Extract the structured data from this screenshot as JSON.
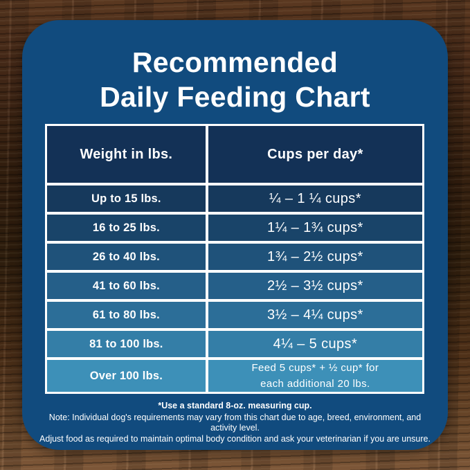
{
  "title": {
    "line1": "Recommended",
    "line2": "Daily Feeding Chart"
  },
  "table": {
    "header_weight": "Weight in lbs.",
    "header_cups": "Cups per day*",
    "rows": [
      {
        "weight": "Up to 15 lbs.",
        "cups": "¼ – 1 ¼ cups*"
      },
      {
        "weight": "16 to 25 lbs.",
        "cups": "1¼ – 1¾ cups*"
      },
      {
        "weight": "26 to 40 lbs.",
        "cups": "1¾ – 2½ cups*"
      },
      {
        "weight": "41 to 60 lbs.",
        "cups": "2½ – 3½ cups*"
      },
      {
        "weight": "61 to 80 lbs.",
        "cups": "3½ – 4¼ cups*"
      },
      {
        "weight": "81 to 100 lbs.",
        "cups": "4¼ – 5 cups*"
      },
      {
        "weight": "Over 100 lbs.",
        "cups_line1": "Feed 5 cups* + ½ cup* for",
        "cups_line2": "each additional 20 lbs."
      }
    ]
  },
  "footnotes": {
    "measuring_cup": "*Use a standard 8-oz. measuring cup.",
    "note_line1": "Note: Individual dog's requirements may vary from this chart due to age, breed, environment, and activity level.",
    "note_line2": "Adjust food as required to maintain optimal body condition and ask your veterinarian if you are unsure."
  },
  "colors": {
    "card_bg": "#114B7E",
    "header_cell_bg": "#133156",
    "table_border": "#FFFFFF",
    "text": "#FFFFFF",
    "row_gradient": [
      "#16395C",
      "#194469",
      "#1F527A",
      "#255F89",
      "#2C6E98",
      "#347EA7",
      "#3D90B8"
    ],
    "wood_dark": "#32200E",
    "wood_light": "#7D5738"
  },
  "chart_data": {
    "type": "table",
    "title": "Recommended Daily Feeding Chart",
    "columns": [
      "Weight in lbs.",
      "Cups per day*"
    ],
    "rows": [
      [
        "Up to 15 lbs.",
        "¼ – 1 ¼ cups*"
      ],
      [
        "16 to 25 lbs.",
        "1¼ – 1¾ cups*"
      ],
      [
        "26 to 40 lbs.",
        "1¾ – 2½ cups*"
      ],
      [
        "41 to 60 lbs.",
        "2½ – 3½ cups*"
      ],
      [
        "61 to 80 lbs.",
        "3½ – 4¼ cups*"
      ],
      [
        "81 to 100 lbs.",
        "4¼ – 5 cups*"
      ],
      [
        "Over 100 lbs.",
        "Feed 5 cups* + ½ cup* for each additional 20 lbs."
      ]
    ],
    "footnote": "*Use a standard 8-oz. measuring cup.",
    "notes": "Note: Individual dog's requirements may vary from this chart due to age, breed, environment, and activity level. Adjust food as required to maintain optimal body condition and ask your veterinarian if you are unsure."
  }
}
